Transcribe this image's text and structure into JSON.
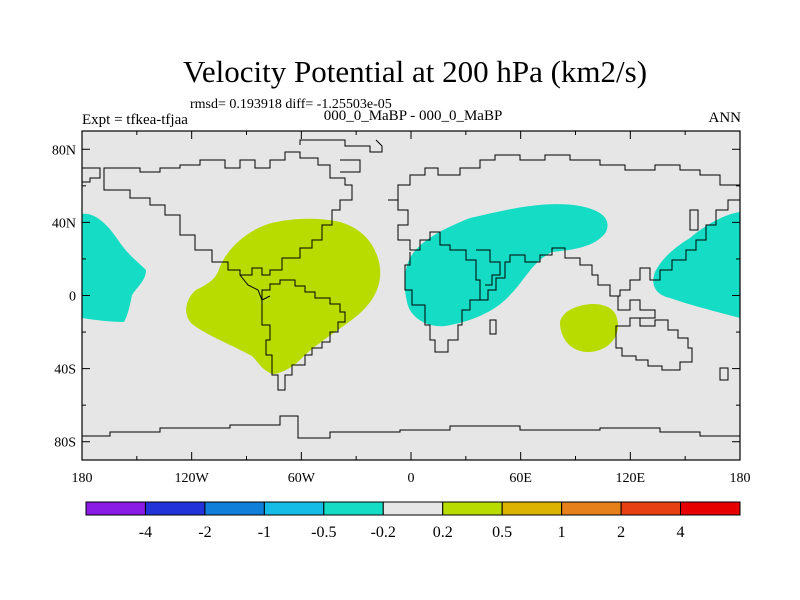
{
  "title": "Velocity Potential at 200 hPa (km2/s)",
  "stats": "rmsd= 0.193918 diff= -1.25503e-05",
  "left_label": "Expt = tfkea-tfjaa",
  "center_label": "000_0_MaBP - 000_0_MaBP",
  "right_label": "ANN",
  "chart_data": {
    "type": "heatmap",
    "lat_ticks": [
      "80N",
      "40N",
      "0",
      "40S",
      "80S"
    ],
    "lat_tick_values": [
      80,
      40,
      0,
      -40,
      -80
    ],
    "lon_ticks": [
      "180",
      "120W",
      "60W",
      "0",
      "60E",
      "120E",
      "180"
    ],
    "lon_tick_values": [
      -180,
      -120,
      -60,
      0,
      60,
      120,
      180
    ],
    "lon_range": [
      -180,
      180
    ],
    "lat_range": [
      -90,
      90
    ],
    "colorbar": {
      "colors": [
        "#8a1ae6",
        "#2233d9",
        "#0f7fd9",
        "#15bde6",
        "#15dcc4",
        "#e6e6e6",
        "#b8dc00",
        "#dcb400",
        "#e6801a",
        "#e64013",
        "#e60000"
      ],
      "labels": [
        "-4",
        "-2",
        "-1",
        "-0.5",
        "-0.2",
        "0.2",
        "0.5",
        "1",
        "2",
        "4"
      ]
    },
    "background_color": "#e6e6e6",
    "positive_color": "#b8dc00",
    "negative_color": "#15dcc4"
  }
}
